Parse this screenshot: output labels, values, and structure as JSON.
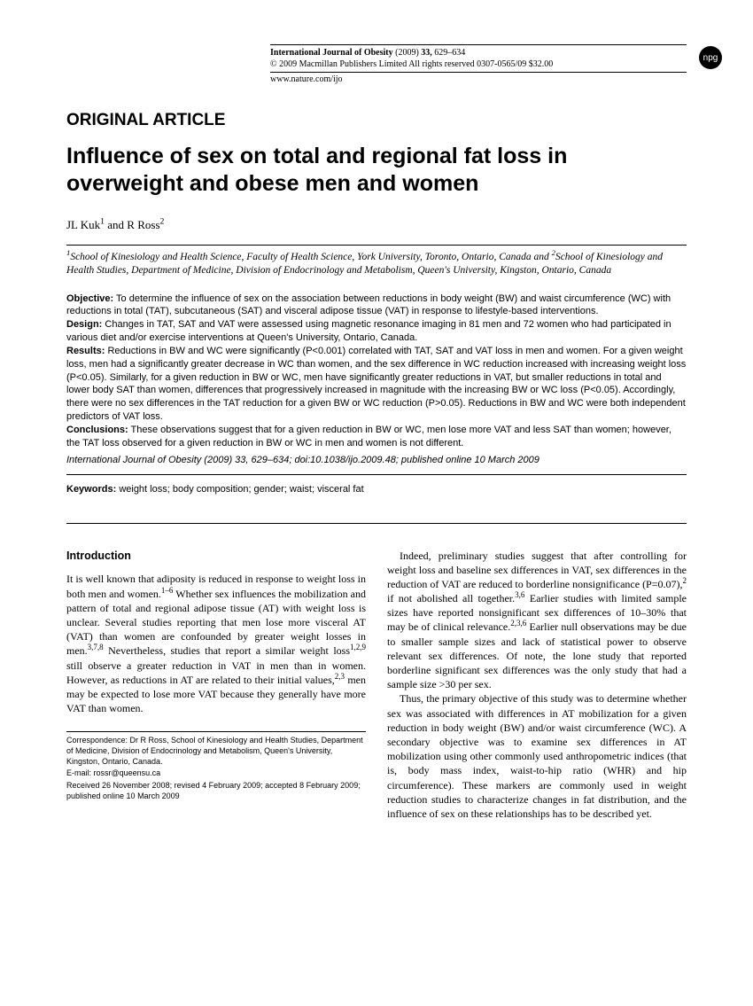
{
  "header": {
    "journal": "International Journal of Obesity",
    "citation_year": "(2009)",
    "citation_vol": "33,",
    "citation_pages": "629–634",
    "copyright": "© 2009 Macmillan Publishers Limited   All rights reserved   0307-0565/09   $32.00",
    "url": "www.nature.com/ijo",
    "logo_text": "npg"
  },
  "article": {
    "type": "ORIGINAL ARTICLE",
    "title": "Influence of sex on total and regional fat loss in overweight and obese men and women",
    "authors_html": "JL Kuk<sup>1</sup> and R Ross<sup>2</sup>",
    "affiliations_html": "<sup>1</sup>School of Kinesiology and Health Science, Faculty of Health Science, York University, Toronto, Ontario, Canada and <sup>2</sup>School of Kinesiology and Health Studies, Department of Medicine, Division of Endocrinology and Metabolism, Queen's University, Kingston, Ontario, Canada"
  },
  "abstract": {
    "objective_label": "Objective:",
    "objective": "To determine the influence of sex on the association between reductions in body weight (BW) and waist circumference (WC) with reductions in total (TAT), subcutaneous (SAT) and visceral adipose tissue (VAT) in response to lifestyle-based interventions.",
    "design_label": "Design:",
    "design": "Changes in TAT, SAT and VAT were assessed using magnetic resonance imaging in 81 men and 72 women who had participated in various diet and/or exercise interventions at Queen's University, Ontario, Canada.",
    "results_label": "Results:",
    "results": "Reductions in BW and WC were significantly (P<0.001) correlated with TAT, SAT and VAT loss in men and women. For a given weight loss, men had a significantly greater decrease in WC than women, and the sex difference in WC reduction increased with increasing weight loss (P<0.05). Similarly, for a given reduction in BW or WC, men have significantly greater reductions in VAT, but smaller reductions in total and lower body SAT than women, differences that progressively increased in magnitude with the increasing BW or WC loss (P<0.05). Accordingly, there were no sex differences in the TAT reduction for a given BW or WC reduction (P>0.05). Reductions in BW and WC were both independent predictors of VAT loss.",
    "conclusions_label": "Conclusions:",
    "conclusions": "These observations suggest that for a given reduction in BW or WC, men lose more VAT and less SAT than women; however, the TAT loss observed for a given reduction in BW or WC in men and women is not different.",
    "citation": "International Journal of Obesity (2009) 33, 629–634; doi:10.1038/ijo.2009.48; published online 10 March 2009"
  },
  "keywords": {
    "label": "Keywords:",
    "text": "weight loss; body composition; gender; waist; visceral fat"
  },
  "intro": {
    "heading": "Introduction",
    "p1_html": "It is well known that adiposity is reduced in response to weight loss in both men and women.<sup>1–6</sup> Whether sex influences the mobilization and pattern of total and regional adipose tissue (AT) with weight loss is unclear. Several studies reporting that men lose more visceral AT (VAT) than women are confounded by greater weight losses in men.<sup>3,7,8</sup> Nevertheless, studies that report a similar weight loss<sup>1,2,9</sup> still observe a greater reduction in VAT in men than in women. However, as reductions in AT are related to their initial values,<sup>2,3</sup> men may be expected to lose more VAT because they generally have more VAT than women.",
    "p2_html": "Indeed, preliminary studies suggest that after controlling for weight loss and baseline sex differences in VAT, sex differences in the reduction of VAT are reduced to borderline nonsignificance (P=0.07),<sup>2</sup> if not abolished all together.<sup>3,6</sup> Earlier studies with limited sample sizes have reported nonsignificant sex differences of 10–30% that may be of clinical relevance.<sup>2,3,6</sup> Earlier null observations may be due to smaller sample sizes and lack of statistical power to observe relevant sex differences. Of note, the lone study that reported borderline significant sex differences was the only study that had a sample size >30 per sex.",
    "p3_html": "Thus, the primary objective of this study was to determine whether sex was associated with differences in AT mobilization for a given reduction in body weight (BW) and/or waist circumference (WC). A secondary objective was to examine sex differences in AT mobilization using other commonly used anthropometric indices (that is, body mass index, waist-to-hip ratio (WHR) and hip circumference). These markers are commonly used in weight reduction studies to characterize changes in fat distribution, and the influence of sex on these relationships has to be described yet."
  },
  "footnotes": {
    "correspondence": "Correspondence: Dr R Ross, School of Kinesiology and Health Studies, Department of Medicine, Division of Endocrinology and Metabolism, Queen's University, Kingston, Ontario, Canada.",
    "email": "E-mail: rossr@queensu.ca",
    "received": "Received 26 November 2008; revised 4 February 2009; accepted 8 February 2009; published online 10 March 2009"
  }
}
